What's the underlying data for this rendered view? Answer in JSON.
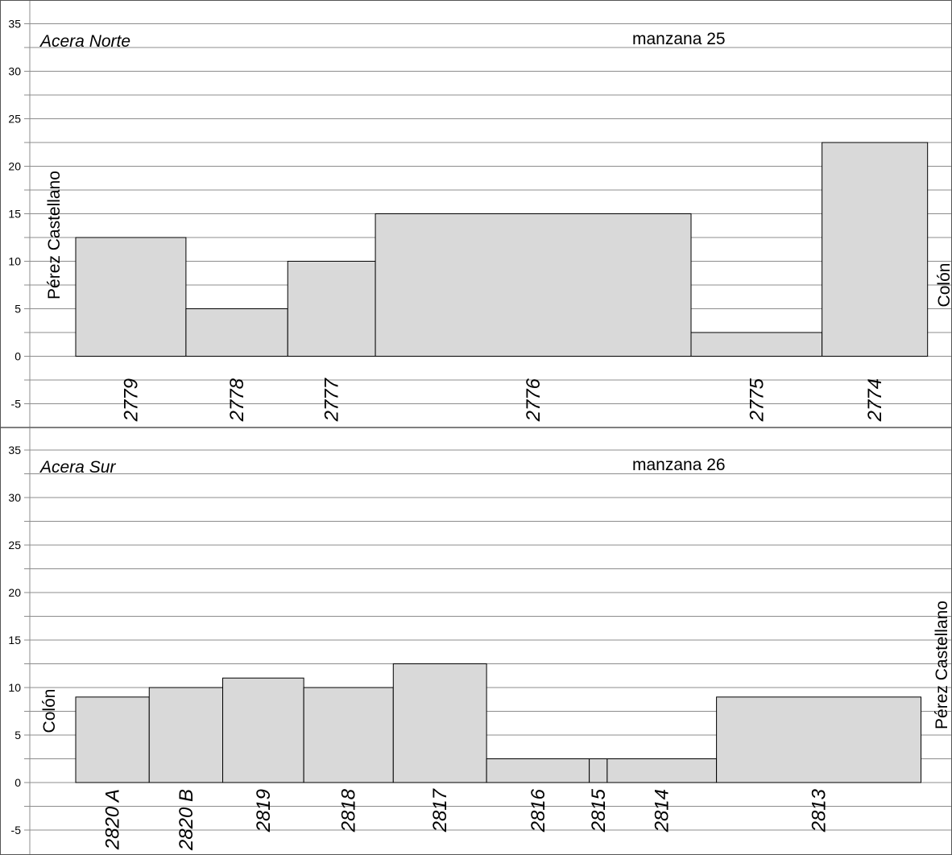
{
  "chart_data": [
    {
      "type": "bar",
      "panel": "north",
      "title": "manzana 25",
      "subtitle": "Acera Norte",
      "left_label": "Pérez Castellano",
      "right_label": "Colón",
      "ylim": [
        -7.5,
        37.5
      ],
      "yticks": [
        "35",
        "30",
        "25",
        "20",
        "15",
        "10",
        "5",
        "0",
        "-5"
      ],
      "grid": true,
      "bars": [
        {
          "label": "2779",
          "x0": 0,
          "x1": 11.7,
          "value": 12.5
        },
        {
          "label": "2778",
          "x0": 11.7,
          "x1": 22.5,
          "value": 5
        },
        {
          "label": "2777",
          "x0": 22.5,
          "x1": 31.8,
          "value": 10
        },
        {
          "label": "2776",
          "x0": 31.8,
          "x1": 65.3,
          "value": 15
        },
        {
          "label": "2775",
          "x0": 65.3,
          "x1": 79.2,
          "value": 2.5
        },
        {
          "label": "2774",
          "x0": 79.2,
          "x1": 90.4,
          "value": 22.5
        }
      ]
    },
    {
      "type": "bar",
      "panel": "south",
      "title": "manzana 26",
      "subtitle": "Acera Sur",
      "left_label": "Colón",
      "right_label": "Pérez Castellano",
      "ylim": [
        -5.5,
        37.5
      ],
      "yticks": [
        "35",
        "30",
        "25",
        "20",
        "15",
        "10",
        "5",
        "0",
        "-5"
      ],
      "grid": true,
      "bars": [
        {
          "label": "2820 A",
          "x0": 0,
          "x1": 7.8,
          "value": 9
        },
        {
          "label": "2820 B",
          "x0": 7.8,
          "x1": 15.6,
          "value": 10
        },
        {
          "label": "2819",
          "x0": 15.6,
          "x1": 24.2,
          "value": 11
        },
        {
          "label": "2818",
          "x0": 24.2,
          "x1": 33.7,
          "value": 10
        },
        {
          "label": "2817",
          "x0": 33.7,
          "x1": 43.6,
          "value": 12.5
        },
        {
          "label": "2816",
          "x0": 43.6,
          "x1": 54.5,
          "value": 2.5
        },
        {
          "label": "2815",
          "x0": 54.5,
          "x1": 56.4,
          "value": 2.5
        },
        {
          "label": "2814",
          "x0": 56.4,
          "x1": 68.0,
          "value": 2.5
        },
        {
          "label": "2813",
          "x0": 68.0,
          "x1": 89.7,
          "value": 9
        }
      ]
    }
  ],
  "colors": {
    "bar_fill": "#d9d9d9",
    "bar_stroke": "#000000",
    "grid": "#8c8c8c",
    "border": "#555555"
  }
}
